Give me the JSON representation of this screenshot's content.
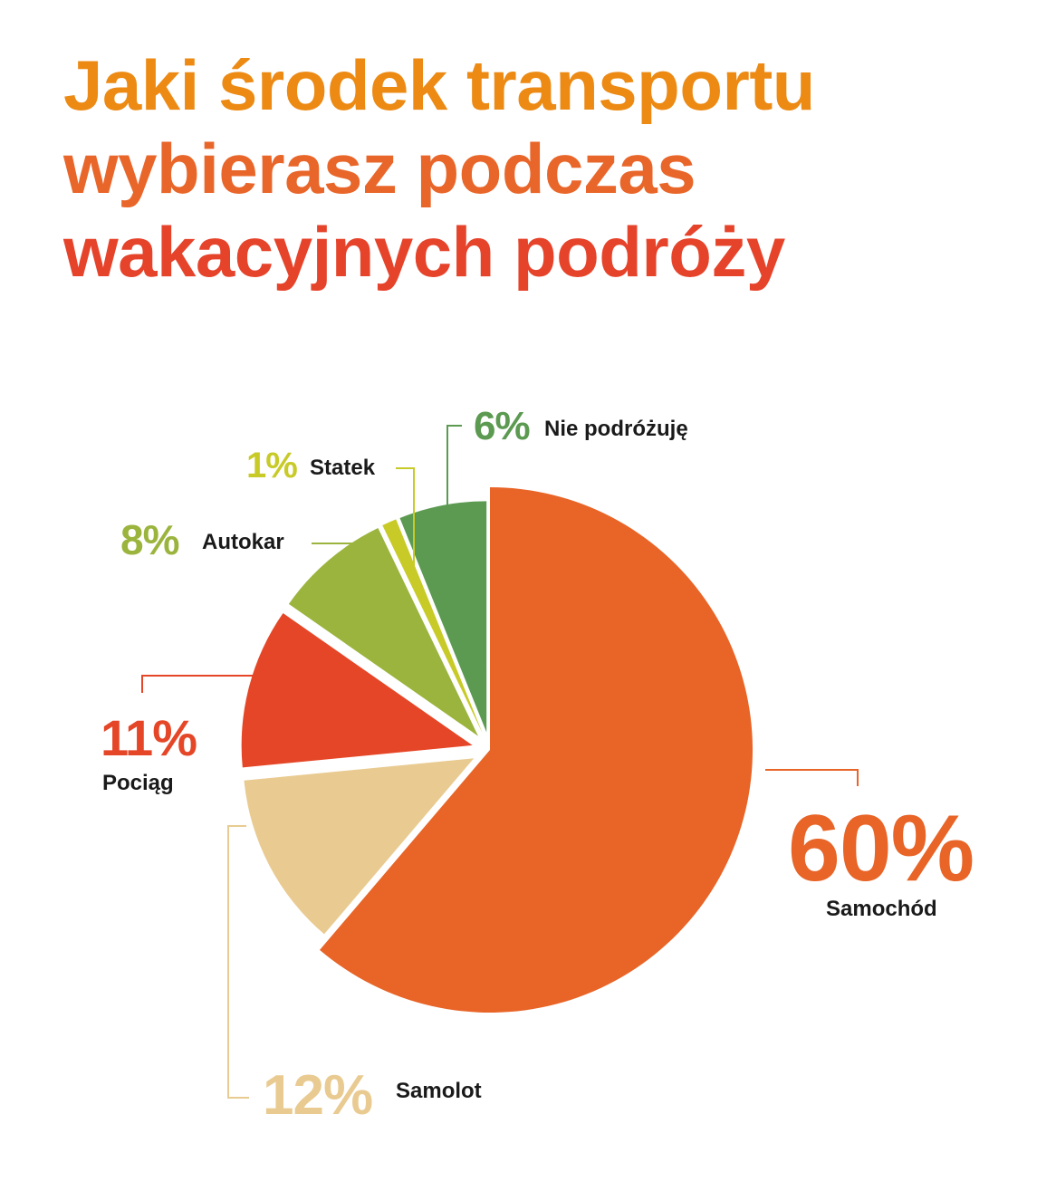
{
  "title_lines": [
    "Jaki środek transportu",
    "wybierasz podczas",
    "wakacyjnych podróży"
  ],
  "colors": {
    "title_line_1": "#ec8a14",
    "title_line_2": "#e9662a",
    "title_line_3": "#e6432b"
  },
  "chart_data": {
    "type": "pie",
    "title": "Jaki środek transportu wybierasz podczas wakacyjnych podróży",
    "slices": [
      {
        "label": "Samochód",
        "value": 60,
        "display": "60%",
        "color": "#e86427",
        "exploded": false
      },
      {
        "label": "Samolot",
        "value": 12,
        "display": "12%",
        "color": "#e9cb91",
        "exploded": true
      },
      {
        "label": "Pociąg",
        "value": 11,
        "display": "11%",
        "color": "#e54627",
        "exploded": true
      },
      {
        "label": "Autokar",
        "value": 8,
        "display": "8%",
        "color": "#9bb43d",
        "exploded": true
      },
      {
        "label": "Statek",
        "value": 1,
        "display": "1%",
        "color": "#c8ca28",
        "exploded": true
      },
      {
        "label": "Nie podróżuję",
        "value": 6,
        "display": "6%",
        "color": "#5b9a50",
        "exploded": true
      }
    ],
    "start_angle_deg": 0,
    "direction": "clockwise"
  }
}
